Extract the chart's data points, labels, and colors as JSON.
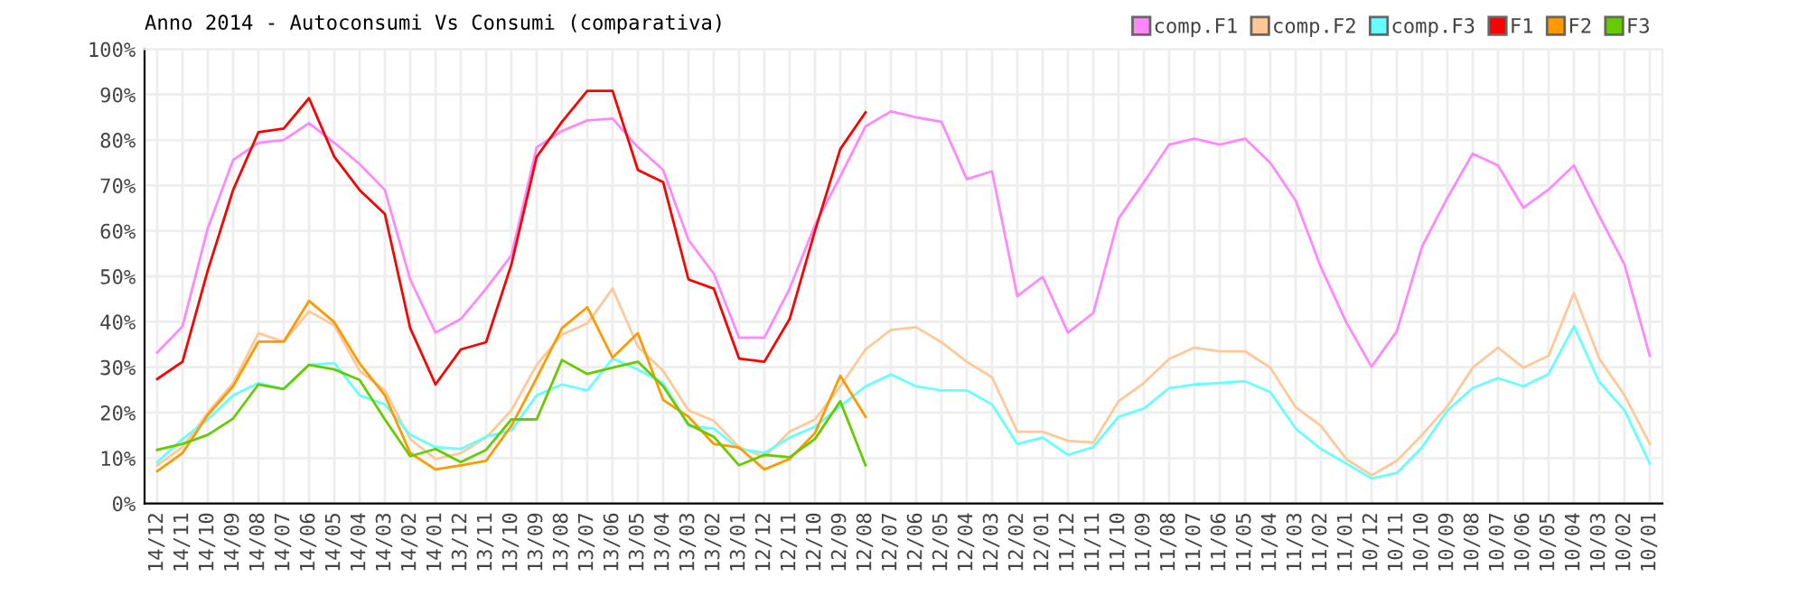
{
  "chart_data": {
    "type": "line",
    "title": "Anno 2014 - Autoconsumi Vs Consumi (comparativa)",
    "categories": [
      "14/12",
      "14/11",
      "14/10",
      "14/09",
      "14/08",
      "14/07",
      "14/06",
      "14/05",
      "14/04",
      "14/03",
      "14/02",
      "14/01",
      "13/12",
      "13/11",
      "13/10",
      "13/09",
      "13/08",
      "13/07",
      "13/06",
      "13/05",
      "13/04",
      "13/03",
      "13/02",
      "13/01",
      "12/12",
      "12/11",
      "12/10",
      "12/09",
      "12/08",
      "12/07",
      "12/06",
      "12/05",
      "12/04",
      "12/03",
      "12/02",
      "12/01",
      "11/12",
      "11/11",
      "11/10",
      "11/09",
      "11/08",
      "11/07",
      "11/06",
      "11/05",
      "11/04",
      "11/03",
      "11/02",
      "11/01",
      "10/12",
      "10/11",
      "10/10",
      "10/09",
      "10/08",
      "10/07",
      "10/06",
      "10/05",
      "10/04",
      "10/03",
      "10/02",
      "10/01"
    ],
    "ylim": [
      0,
      100
    ],
    "yticks": [
      {
        "value": 0,
        "label": "0%"
      },
      {
        "value": 10,
        "label": "10%"
      },
      {
        "value": 20,
        "label": "20%"
      },
      {
        "value": 30,
        "label": "30%"
      },
      {
        "value": 40,
        "label": "40%"
      },
      {
        "value": 50,
        "label": "50%"
      },
      {
        "value": 60,
        "label": "60%"
      },
      {
        "value": 70,
        "label": "70%"
      },
      {
        "value": 80,
        "label": "80%"
      },
      {
        "value": 90,
        "label": "90%"
      },
      {
        "value": 100,
        "label": "100%"
      }
    ],
    "grid": true,
    "legend": "top right",
    "marker": "none",
    "line_style": "solid",
    "series": [
      {
        "name": "comp.F1",
        "color": "#ff88ff",
        "values": [
          33.2,
          39,
          60.6,
          75.6,
          79.4,
          80,
          83.7,
          79.4,
          74.7,
          69,
          49.3,
          37.6,
          40.6,
          47.3,
          54.6,
          78.4,
          82,
          84.3,
          84.7,
          78.4,
          73.4,
          58,
          50.6,
          36.5,
          36.5,
          47.3,
          61.3,
          72,
          83,
          86.3,
          85,
          84,
          71.4,
          73.1,
          45.6,
          49.9,
          37.6,
          41.9,
          62.7,
          70.7,
          79,
          80.3,
          79,
          80.3,
          75,
          66.7,
          52,
          39.9,
          30.1,
          37.9,
          56.6,
          67.3,
          77,
          74.4,
          65.1,
          69.1,
          74.4,
          63.3,
          52.6,
          32.5
        ]
      },
      {
        "name": "comp.F2",
        "color": "#ffc898",
        "values": [
          8.4,
          12.4,
          20,
          26.5,
          37.5,
          35.6,
          42.3,
          39.2,
          29.2,
          24.9,
          14.2,
          9.8,
          11.1,
          14.5,
          20.5,
          30.5,
          37.2,
          39.6,
          47.3,
          34.5,
          29.2,
          20.5,
          18.2,
          12.4,
          10.2,
          15.8,
          18.5,
          25.8,
          33.9,
          38.2,
          38.8,
          35.5,
          31.2,
          27.8,
          15.8,
          15.8,
          13.8,
          13.4,
          22.5,
          26.5,
          31.8,
          34.3,
          33.5,
          33.5,
          29.9,
          21.2,
          17.1,
          9.8,
          6.2,
          9.4,
          15.1,
          21.4,
          29.9,
          34.3,
          29.9,
          32.5,
          46.3,
          31.9,
          23.8,
          13.1
        ]
      },
      {
        "name": "comp.F3",
        "color": "#66ffff",
        "values": [
          9.1,
          14.2,
          18.5,
          23.8,
          26.5,
          25.2,
          30.5,
          30.9,
          23.8,
          21.8,
          15.1,
          12.4,
          12,
          14.7,
          16.1,
          23.8,
          26.2,
          24.9,
          31.9,
          29.5,
          26.5,
          17.1,
          16.5,
          12,
          11.1,
          14.5,
          16.9,
          21.4,
          25.8,
          28.4,
          25.8,
          24.9,
          24.9,
          21.8,
          13.1,
          14.5,
          10.7,
          12.4,
          19.1,
          20.9,
          25.4,
          26.2,
          26.5,
          26.9,
          24.5,
          16.5,
          12,
          8.8,
          5.5,
          6.7,
          12.4,
          20.5,
          25.4,
          27.6,
          25.8,
          28.5,
          39,
          26.8,
          20.5,
          8.8
        ]
      },
      {
        "name": "F1",
        "color": "#ff0000",
        "values": [
          27.4,
          31.2,
          51.3,
          69,
          81.7,
          82.5,
          89.2,
          76.3,
          69,
          63.7,
          38.6,
          26.2,
          33.9,
          35.5,
          52.6,
          76.3,
          84,
          90.8,
          90.8,
          73.4,
          70.7,
          49.3,
          47.3,
          31.9,
          31.2,
          40.6,
          60,
          78,
          86.1,
          null,
          null,
          null,
          null,
          null,
          null,
          null,
          null,
          null,
          null,
          null,
          null,
          null,
          null,
          null,
          null,
          null,
          null,
          null,
          null,
          null,
          null,
          null,
          null,
          null,
          null,
          null,
          null,
          null,
          null,
          null
        ]
      },
      {
        "name": "F2",
        "color": "#ff9900",
        "values": [
          7.1,
          11.1,
          19.5,
          25.8,
          35.6,
          35.6,
          44.6,
          39.9,
          30.8,
          23.8,
          11.1,
          7.5,
          8.4,
          9.4,
          17.1,
          27.6,
          38.6,
          43.2,
          32.1,
          37.5,
          22.8,
          19.1,
          13.1,
          12.3,
          7.5,
          9.8,
          15.5,
          28.1,
          19.1,
          null,
          null,
          null,
          null,
          null,
          null,
          null,
          null,
          null,
          null,
          null,
          null,
          null,
          null,
          null,
          null,
          null,
          null,
          null,
          null,
          null,
          null,
          null,
          null,
          null,
          null,
          null,
          null,
          null,
          null,
          null
        ]
      },
      {
        "name": "F3",
        "color": "#66cc00",
        "values": [
          11.8,
          13.1,
          15.1,
          18.7,
          26.2,
          25.2,
          30.5,
          29.5,
          27.2,
          18.5,
          10.4,
          12,
          9.1,
          11.8,
          18.5,
          18.5,
          31.6,
          28.5,
          29.9,
          31.2,
          25.8,
          17.4,
          14.7,
          8.4,
          10.7,
          10.2,
          14.2,
          22.5,
          8.4,
          null,
          null,
          null,
          null,
          null,
          null,
          null,
          null,
          null,
          null,
          null,
          null,
          null,
          null,
          null,
          null,
          null,
          null,
          null,
          null,
          null,
          null,
          null,
          null,
          null,
          null,
          null,
          null,
          null,
          null,
          null
        ]
      }
    ]
  }
}
